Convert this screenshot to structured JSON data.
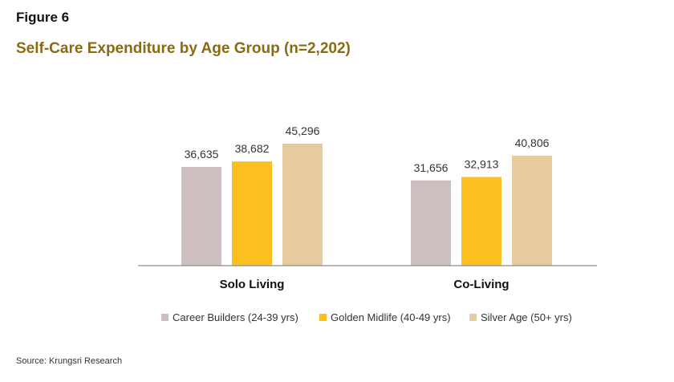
{
  "figure_label": "Figure 6",
  "source": "Source: Krungsri Research",
  "chart_data": {
    "type": "bar",
    "title": "Self-Care Expenditure by Age Group (n=2,202)",
    "categories": [
      "Solo Living",
      "Co-Living"
    ],
    "series": [
      {
        "name": "Career Builders (24-39 yrs)",
        "color": "#cdbfbd",
        "values": [
          36635,
          31656
        ],
        "labels": [
          "36,635",
          "31,656"
        ]
      },
      {
        "name": "Golden Midlife (40-49 yrs)",
        "color": "#fcbf20",
        "values": [
          38682,
          32913
        ],
        "labels": [
          "38,682",
          "32,913"
        ]
      },
      {
        "name": "Silver Age (50+ yrs)",
        "color": "#e6cb9d",
        "values": [
          45296,
          40806
        ],
        "labels": [
          "45,296",
          "40,806"
        ]
      }
    ],
    "ylim": [
      0,
      50000
    ],
    "grid": false,
    "legend_position": "bottom"
  }
}
